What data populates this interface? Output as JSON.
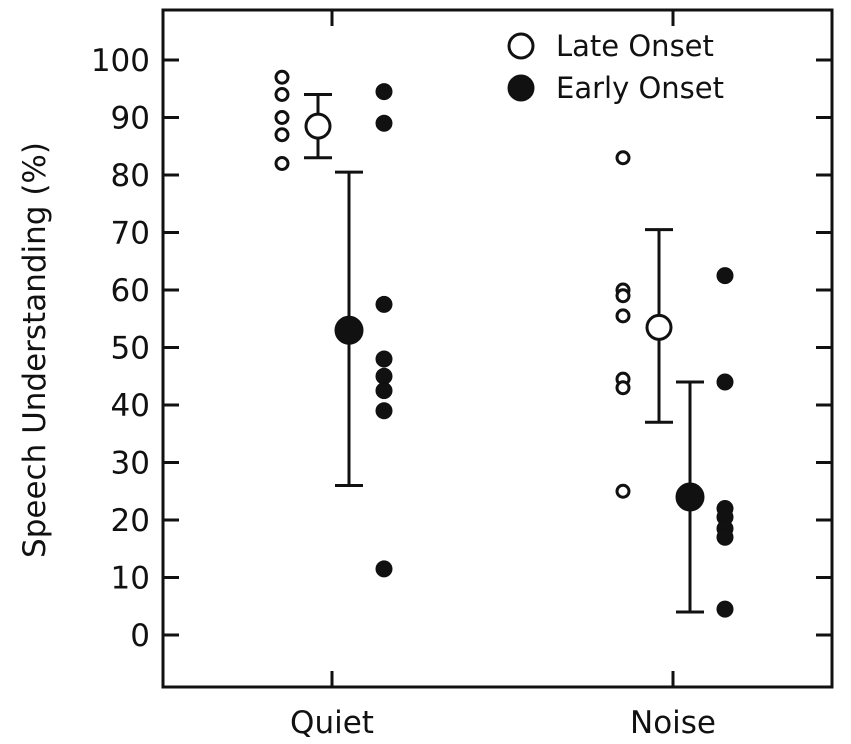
{
  "chart_data": {
    "type": "scatter",
    "title": "",
    "xlabel": "",
    "ylabel": "Speech Understanding (%)",
    "categories": [
      "Quiet",
      "Noise"
    ],
    "ylim": [
      -10,
      110
    ],
    "yticks": [
      0,
      10,
      20,
      30,
      40,
      50,
      60,
      70,
      80,
      90,
      100
    ],
    "legend_position": "top-right",
    "series": [
      {
        "name": "Late Onset",
        "marker": "open-circle",
        "individual": {
          "Quiet": [
            97,
            94,
            90,
            87,
            82
          ],
          "Noise": [
            83,
            60,
            59,
            55.5,
            44.5,
            43,
            25
          ]
        },
        "mean": {
          "Quiet": 88.5,
          "Noise": 53.5
        },
        "error_low": {
          "Quiet": 83,
          "Noise": 37
        },
        "error_high": {
          "Quiet": 94,
          "Noise": 70.5
        }
      },
      {
        "name": "Early Onset",
        "marker": "filled-circle",
        "individual": {
          "Quiet": [
            94.5,
            89,
            57.5,
            48,
            45,
            42.5,
            39,
            11.5
          ],
          "Noise": [
            62.5,
            44,
            22,
            20.5,
            18.5,
            17,
            4.5
          ]
        },
        "mean": {
          "Quiet": 53,
          "Noise": 24
        },
        "error_low": {
          "Quiet": 26,
          "Noise": 4
        },
        "error_high": {
          "Quiet": 80.5,
          "Noise": 44
        }
      }
    ]
  }
}
